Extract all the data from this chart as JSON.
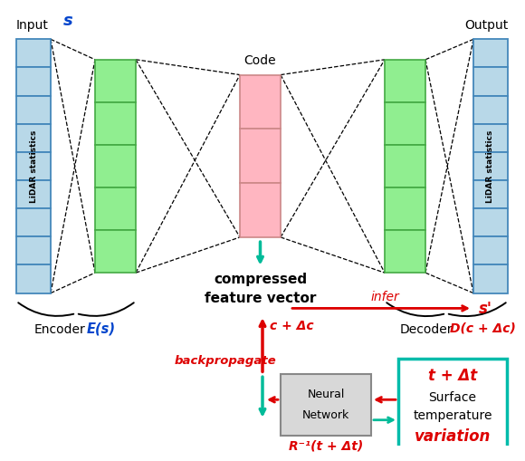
{
  "bg_color": "#ffffff",
  "lidar_box_color": "#b8d8e8",
  "lidar_box_edge": "#4488bb",
  "green_box_color": "#90EE90",
  "green_box_edge": "#44aa44",
  "code_box_color": "#FFB6C1",
  "code_box_edge": "#cc8888",
  "nn_box_color": "#d8d8d8",
  "nn_box_edge": "#888888",
  "temp_box_color": "#ffffff",
  "temp_box_edge": "#00bbaa",
  "teal_color": "#00bb99",
  "red_color": "#dd0000",
  "blue_color": "#0044cc",
  "label_input": "Input",
  "label_output": "Output",
  "label_s": "s",
  "label_s_prime": "s'",
  "label_code": "Code",
  "label_cfv1": "compressed",
  "label_cfv2": "feature vector",
  "label_encoder": "Encoder",
  "label_decoder": "Decoder",
  "label_Es": "E(s)",
  "label_DcDc": "D(c + Δc)",
  "label_cDc": "c + Δc",
  "label_infer": "infer",
  "label_backprop": "backpropagate",
  "label_nn1": "Neural",
  "label_nn2": "Network",
  "label_Rinv": "R⁻¹(t + Δt)",
  "label_tDt_title": "t + Δt",
  "label_tDt_line1": "Surface",
  "label_tDt_line2": "temperature",
  "label_tDt_line3": "variation",
  "label_lidar": "LiDAR statistics"
}
